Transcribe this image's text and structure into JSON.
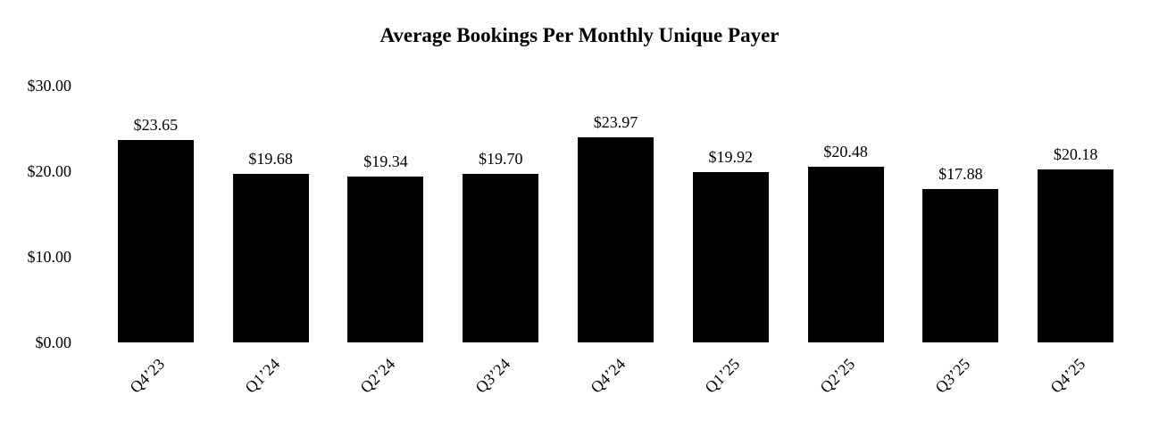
{
  "chart_data": {
    "type": "bar",
    "title": "Average Bookings Per Monthly Unique Payer",
    "categories": [
      "Q4’23",
      "Q1’24",
      "Q2’24",
      "Q3’24",
      "Q4’24",
      "Q1’25",
      "Q2’25",
      "Q3’25",
      "Q4’25"
    ],
    "values": [
      23.65,
      19.68,
      19.34,
      19.7,
      23.97,
      19.92,
      20.48,
      17.88,
      20.18
    ],
    "value_labels": [
      "$23.65",
      "$19.68",
      "$19.34",
      "$19.70",
      "$23.97",
      "$19.92",
      "$20.48",
      "$17.88",
      "$20.18"
    ],
    "y_ticks": [
      {
        "value": 30,
        "label": "$30.00"
      },
      {
        "value": 20,
        "label": "$20.00"
      },
      {
        "value": 10,
        "label": "$10.00"
      },
      {
        "value": 0,
        "label": "$0.00"
      }
    ],
    "ylim": [
      0,
      30
    ],
    "xlabel": "",
    "ylabel": "",
    "grid": false,
    "legend": null,
    "bar_color": "#000000",
    "background_color": "#ffffff",
    "text_color": "#000000"
  }
}
